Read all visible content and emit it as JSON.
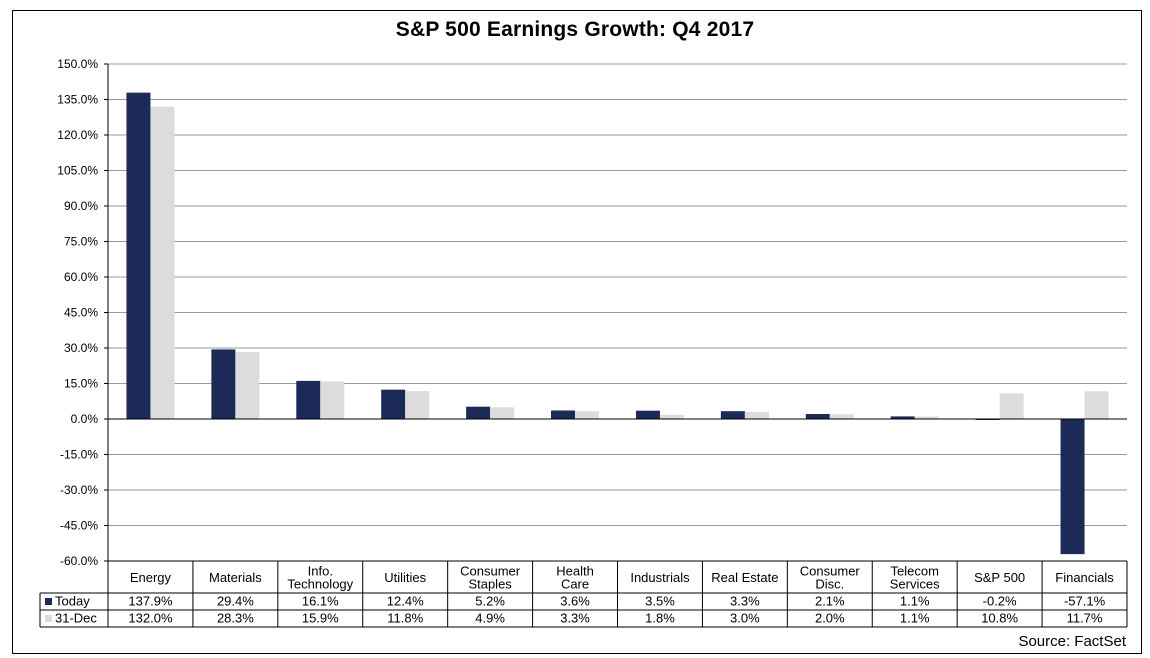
{
  "chart_data": {
    "type": "bar",
    "title": "S&P 500 Earnings Growth: Q4 2017",
    "source": "Source: FactSet",
    "xlabel": "",
    "ylabel": "",
    "ylim": [
      -60,
      150
    ],
    "y_ticks": [
      "150.0%",
      "135.0%",
      "120.0%",
      "105.0%",
      "90.0%",
      "75.0%",
      "60.0%",
      "45.0%",
      "30.0%",
      "15.0%",
      "0.0%",
      "-15.0%",
      "-30.0%",
      "-45.0%",
      "-60.0%"
    ],
    "y_tick_values": [
      150,
      135,
      120,
      105,
      90,
      75,
      60,
      45,
      30,
      15,
      0,
      -15,
      -30,
      -45,
      -60
    ],
    "grid": true,
    "categories": [
      [
        "Energy"
      ],
      [
        "Materials"
      ],
      [
        "Info.",
        "Technology"
      ],
      [
        "Utilities"
      ],
      [
        "Consumer",
        "Staples"
      ],
      [
        "Health",
        "Care"
      ],
      [
        "Industrials"
      ],
      [
        "Real Estate"
      ],
      [
        "Consumer",
        "Disc."
      ],
      [
        "Telecom",
        "Services"
      ],
      [
        "S&P 500"
      ],
      [
        "Financials"
      ]
    ],
    "series": [
      {
        "name": "Today",
        "color": "#1b2a57",
        "values": [
          137.9,
          29.4,
          16.1,
          12.4,
          5.2,
          3.6,
          3.5,
          3.3,
          2.1,
          1.1,
          -0.2,
          -57.1
        ],
        "labels": [
          "137.9%",
          "29.4%",
          "16.1%",
          "12.4%",
          "5.2%",
          "3.6%",
          "3.5%",
          "3.3%",
          "2.1%",
          "1.1%",
          "-0.2%",
          "-57.1%"
        ]
      },
      {
        "name": "31-Dec",
        "color": "#dcdcdc",
        "values": [
          132.0,
          28.3,
          15.9,
          11.8,
          4.9,
          3.3,
          1.8,
          3.0,
          2.0,
          1.1,
          10.8,
          11.7
        ],
        "labels": [
          "132.0%",
          "28.3%",
          "15.9%",
          "11.8%",
          "4.9%",
          "3.3%",
          "1.8%",
          "3.0%",
          "2.0%",
          "1.1%",
          "10.8%",
          "11.7%"
        ]
      }
    ]
  }
}
